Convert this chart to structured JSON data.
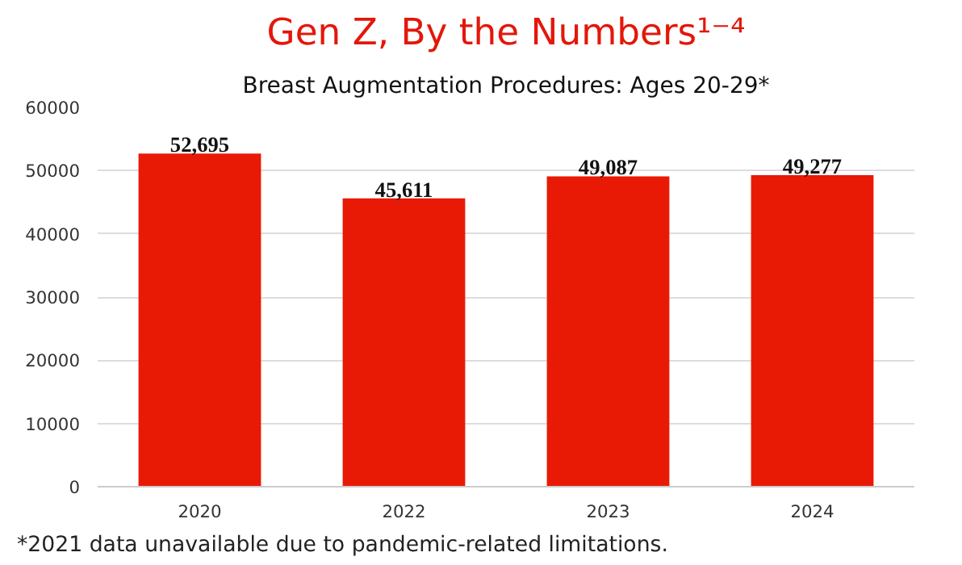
{
  "chart_data": {
    "type": "bar",
    "title": "Gen Z, By the Numbers¹⁻⁴",
    "subtitle": "Breast Augmentation Procedures: Ages 20-29*",
    "categories": [
      "2020",
      "2022",
      "2023",
      "2024"
    ],
    "values": [
      52695,
      45611,
      49087,
      49277
    ],
    "value_labels": [
      "52,695",
      "45,611",
      "49,087",
      "49,277"
    ],
    "color": "#e81a06",
    "ylim": [
      0,
      60000
    ],
    "yticks": [
      0,
      10000,
      20000,
      30000,
      40000,
      50000,
      60000
    ],
    "grid": "y",
    "annotations": [
      "*2021 data unavailable due to pandemic-related limitations."
    ]
  }
}
